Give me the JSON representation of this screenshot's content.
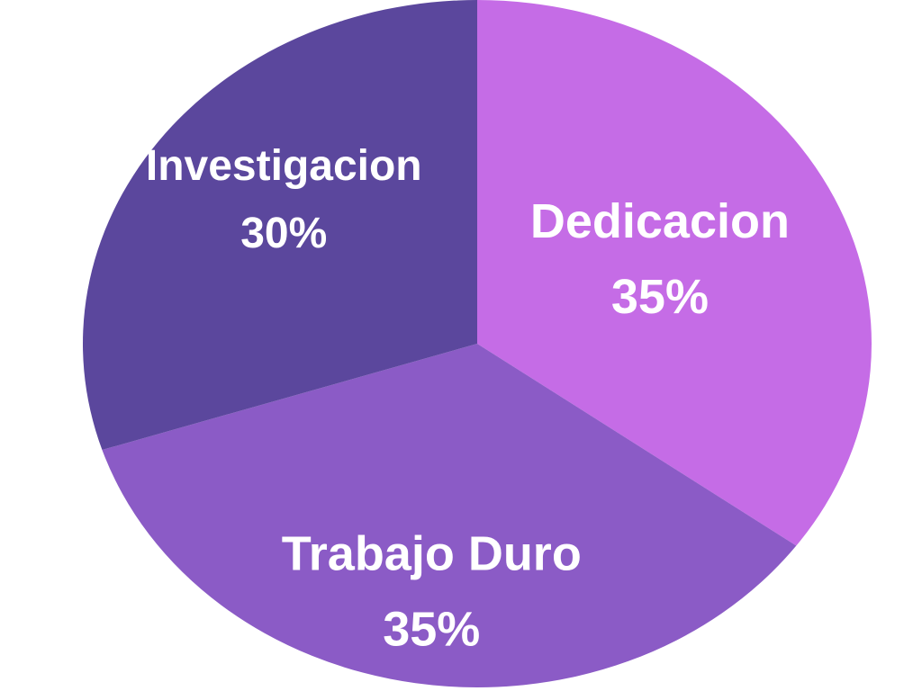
{
  "chart_data": {
    "type": "pie",
    "title": "",
    "slices": [
      {
        "label": "Dedicacion",
        "percent_label": "35%",
        "value": 35,
        "color": "#c56ce6"
      },
      {
        "label": "Trabajo Duro",
        "percent_label": "35%",
        "value": 35,
        "color": "#8b5bc6"
      },
      {
        "label": "Investigacion",
        "percent_label": "30%",
        "value": 30,
        "color": "#5b479d"
      }
    ],
    "start_angle_deg": 0,
    "direction": "clockwise",
    "legend": "none"
  }
}
